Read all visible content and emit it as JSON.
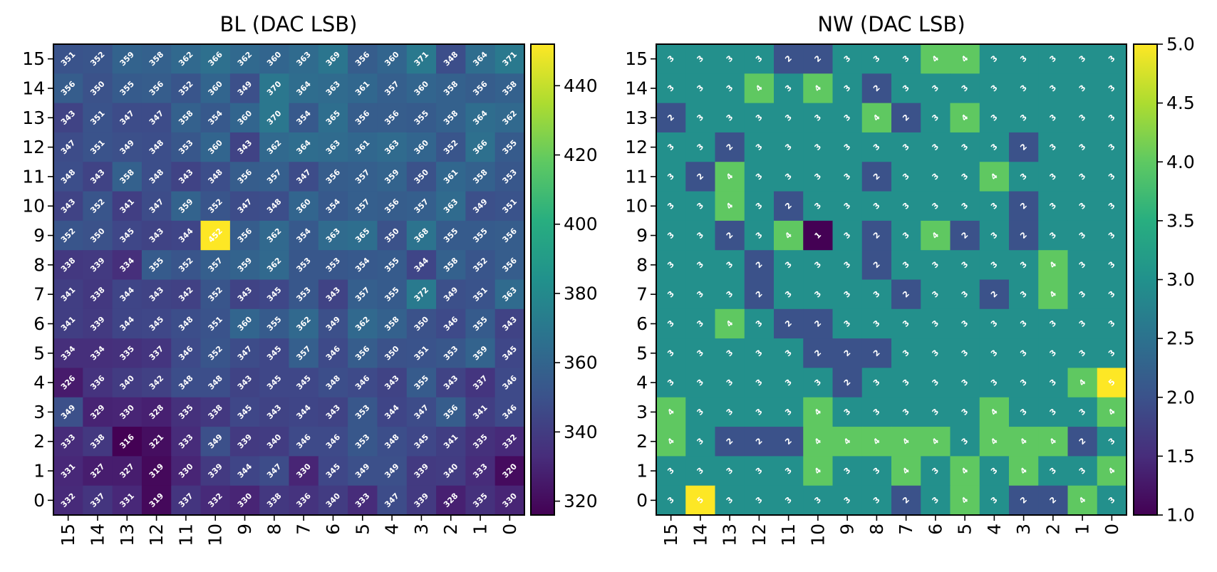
{
  "chart_data": [
    {
      "type": "heatmap",
      "title": "BL (DAC LSB)",
      "xlabel": "",
      "ylabel": "",
      "x_categories": [
        "15",
        "14",
        "13",
        "12",
        "11",
        "10",
        "9",
        "8",
        "7",
        "6",
        "5",
        "4",
        "3",
        "2",
        "1",
        "0"
      ],
      "y_categories": [
        "15",
        "14",
        "13",
        "12",
        "11",
        "10",
        "9",
        "8",
        "7",
        "6",
        "5",
        "4",
        "3",
        "2",
        "1",
        "0"
      ],
      "colormap": "viridis",
      "vmin": 316,
      "vmax": 452,
      "colorbar_ticks": [
        320,
        340,
        360,
        380,
        400,
        420,
        440
      ],
      "colorbar_tick_labels": [
        "320",
        "340",
        "360",
        "380",
        "400",
        "420",
        "440"
      ],
      "values": [
        [
          351,
          352,
          359,
          358,
          362,
          366,
          362,
          360,
          363,
          369,
          356,
          360,
          371,
          348,
          364,
          371
        ],
        [
          356,
          350,
          355,
          356,
          352,
          360,
          349,
          370,
          364,
          363,
          361,
          357,
          360,
          358,
          356,
          358
        ],
        [
          343,
          351,
          347,
          347,
          358,
          354,
          360,
          370,
          354,
          365,
          356,
          356,
          355,
          358,
          364,
          362
        ],
        [
          347,
          351,
          349,
          348,
          353,
          360,
          343,
          362,
          364,
          363,
          361,
          363,
          360,
          352,
          366,
          355
        ],
        [
          348,
          343,
          358,
          348,
          343,
          348,
          356,
          357,
          347,
          356,
          357,
          359,
          350,
          361,
          358,
          353
        ],
        [
          343,
          352,
          341,
          347,
          359,
          352,
          347,
          348,
          360,
          354,
          357,
          356,
          357,
          363,
          349,
          351
        ],
        [
          352,
          350,
          345,
          343,
          344,
          452,
          356,
          362,
          354,
          363,
          365,
          350,
          368,
          355,
          355,
          356
        ],
        [
          338,
          339,
          334,
          355,
          352,
          357,
          359,
          362,
          353,
          353,
          354,
          355,
          344,
          358,
          352,
          356
        ],
        [
          341,
          338,
          344,
          343,
          342,
          352,
          343,
          345,
          353,
          343,
          357,
          355,
          372,
          349,
          351,
          363
        ],
        [
          341,
          339,
          344,
          345,
          348,
          351,
          360,
          355,
          362,
          349,
          362,
          358,
          350,
          346,
          355,
          343
        ],
        [
          334,
          334,
          335,
          337,
          346,
          352,
          347,
          345,
          357,
          346,
          356,
          350,
          351,
          353,
          359,
          345
        ],
        [
          326,
          336,
          340,
          342,
          348,
          348,
          343,
          345,
          345,
          348,
          346,
          343,
          355,
          343,
          337,
          346
        ],
        [
          349,
          329,
          330,
          328,
          335,
          338,
          345,
          343,
          344,
          343,
          353,
          344,
          347,
          356,
          341,
          346
        ],
        [
          333,
          338,
          316,
          321,
          333,
          349,
          339,
          340,
          346,
          346,
          353,
          348,
          345,
          341,
          335,
          332
        ],
        [
          331,
          327,
          327,
          319,
          330,
          339,
          344,
          347,
          330,
          345,
          349,
          349,
          339,
          340,
          333,
          320
        ],
        [
          332,
          337,
          331,
          319,
          337,
          332,
          330,
          338,
          336,
          340,
          333,
          347,
          339,
          328,
          335,
          330
        ]
      ]
    },
    {
      "type": "heatmap",
      "title": "NW (DAC LSB)",
      "xlabel": "",
      "ylabel": "",
      "x_categories": [
        "15",
        "14",
        "13",
        "12",
        "11",
        "10",
        "9",
        "8",
        "7",
        "6",
        "5",
        "4",
        "3",
        "2",
        "1",
        "0"
      ],
      "y_categories": [
        "15",
        "14",
        "13",
        "12",
        "11",
        "10",
        "9",
        "8",
        "7",
        "6",
        "5",
        "4",
        "3",
        "2",
        "1",
        "0"
      ],
      "colormap": "viridis",
      "vmin": 1.0,
      "vmax": 5.0,
      "colorbar_ticks": [
        1.0,
        1.5,
        2.0,
        2.5,
        3.0,
        3.5,
        4.0,
        4.5,
        5.0
      ],
      "colorbar_tick_labels": [
        "1.0",
        "1.5",
        "2.0",
        "2.5",
        "3.0",
        "3.5",
        "4.0",
        "4.5",
        "5.0"
      ],
      "values": [
        [
          3,
          3,
          3,
          3,
          2,
          2,
          3,
          3,
          3,
          4,
          4,
          3,
          3,
          3,
          3,
          3
        ],
        [
          3,
          3,
          3,
          4,
          3,
          4,
          3,
          2,
          3,
          3,
          3,
          3,
          3,
          3,
          3,
          3
        ],
        [
          2,
          3,
          3,
          3,
          3,
          3,
          3,
          4,
          2,
          3,
          4,
          3,
          3,
          3,
          3,
          3
        ],
        [
          3,
          3,
          2,
          3,
          3,
          3,
          3,
          3,
          3,
          3,
          3,
          3,
          2,
          3,
          3,
          3
        ],
        [
          3,
          2,
          4,
          3,
          3,
          3,
          3,
          2,
          3,
          3,
          3,
          4,
          3,
          3,
          3,
          3
        ],
        [
          3,
          3,
          4,
          3,
          2,
          3,
          3,
          3,
          3,
          3,
          3,
          3,
          2,
          3,
          3,
          3
        ],
        [
          3,
          3,
          2,
          3,
          4,
          1,
          3,
          2,
          3,
          4,
          2,
          3,
          2,
          3,
          3,
          3
        ],
        [
          3,
          3,
          3,
          2,
          3,
          3,
          3,
          2,
          3,
          3,
          3,
          3,
          3,
          4,
          3,
          3
        ],
        [
          3,
          3,
          3,
          2,
          3,
          3,
          3,
          3,
          2,
          3,
          3,
          2,
          3,
          4,
          3,
          3
        ],
        [
          3,
          3,
          4,
          3,
          2,
          2,
          3,
          3,
          3,
          3,
          3,
          3,
          3,
          3,
          3,
          3
        ],
        [
          3,
          3,
          3,
          3,
          3,
          2,
          2,
          2,
          3,
          3,
          3,
          3,
          3,
          3,
          3,
          3
        ],
        [
          3,
          3,
          3,
          3,
          3,
          3,
          2,
          3,
          3,
          3,
          3,
          3,
          3,
          3,
          4,
          5
        ],
        [
          4,
          3,
          3,
          3,
          3,
          4,
          3,
          3,
          3,
          3,
          3,
          4,
          3,
          3,
          3,
          4
        ],
        [
          4,
          3,
          2,
          2,
          2,
          4,
          4,
          4,
          4,
          4,
          3,
          4,
          4,
          4,
          2,
          3
        ],
        [
          3,
          3,
          3,
          3,
          3,
          4,
          3,
          3,
          4,
          3,
          4,
          3,
          4,
          3,
          3,
          4
        ],
        [
          3,
          5,
          3,
          3,
          3,
          3,
          3,
          3,
          2,
          3,
          4,
          3,
          2,
          2,
          4,
          3
        ]
      ]
    }
  ]
}
